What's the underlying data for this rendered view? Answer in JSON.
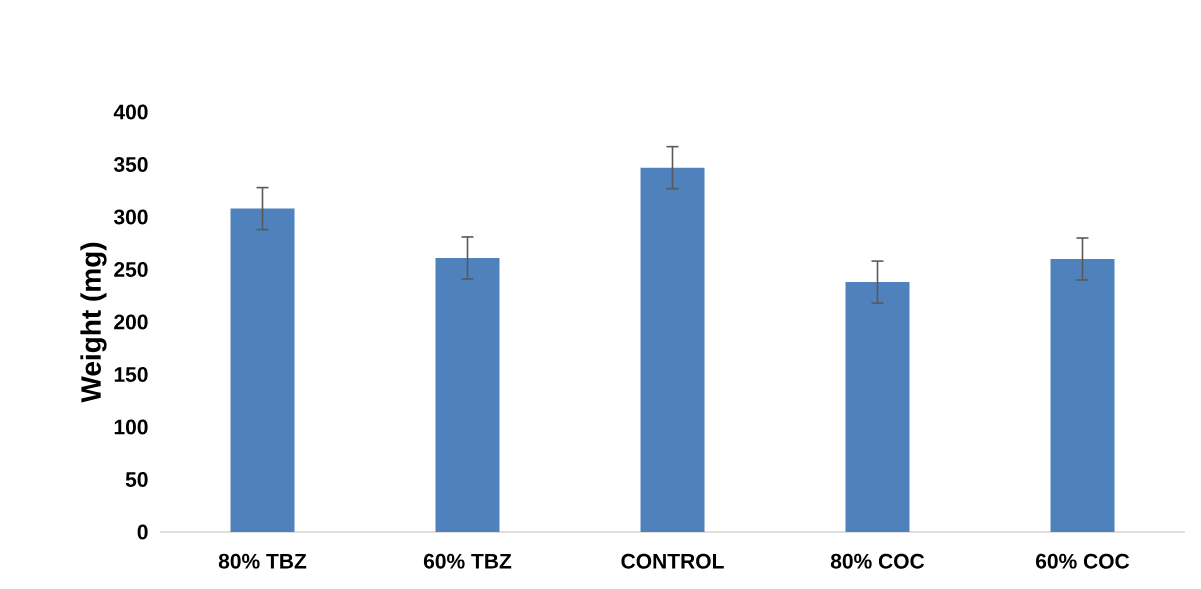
{
  "chart_data": {
    "type": "bar",
    "ylabel": "Weight (mg)",
    "categories": [
      "80% TBZ",
      "60% TBZ",
      "CONTROL",
      "80% COC",
      "60% COC"
    ],
    "values": [
      308,
      261,
      347,
      238,
      260
    ],
    "errors": [
      20,
      20,
      20,
      20,
      20
    ],
    "color": "#4f81bd",
    "ylim": [
      0,
      400
    ],
    "yticks": [
      0,
      50,
      100,
      150,
      200,
      250,
      300,
      350,
      400
    ]
  }
}
